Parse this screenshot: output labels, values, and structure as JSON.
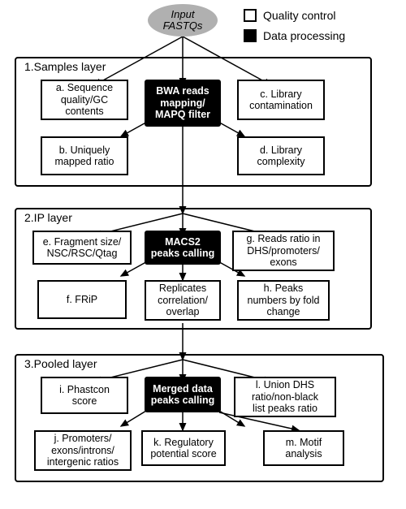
{
  "legend": {
    "qc": "Quality control",
    "dp": "Data processing"
  },
  "input": "Input\nFASTQs",
  "layers": {
    "l1": "1.Samples layer",
    "l2": "2.IP layer",
    "l3": "3.Pooled layer"
  },
  "blocks": {
    "bwa": "BWA reads\nmapping/\nMAPQ filter",
    "macs2": "MACS2\npeaks calling",
    "merged": "Merged data\npeaks calling"
  },
  "nodes": {
    "a": "a. Sequence\nquality/GC\ncontents",
    "b": "b. Uniquely\nmapped ratio",
    "c": "c. Library\ncontamination",
    "d": "d. Library\ncomplexity",
    "e": "e. Fragment size/\nNSC/RSC/Qtag",
    "f": "f. FRiP",
    "g": "g. Reads ratio in\nDHS/promoters/\nexons",
    "h": "h. Peaks\nnumbers by fold\nchange",
    "rep": "Replicates\ncorrelation/\noverlap",
    "i": "i. Phastcon\nscore",
    "j": "j. Promoters/\nexons/introns/\nintergenic ratios",
    "k": "k. Regulatory\npotential score",
    "l": "l. Union DHS\nratio/non-black\nlist peaks ratio",
    "m": "m. Motif\nanalysis"
  },
  "style": {
    "bg": "#ffffff",
    "stroke": "#000000",
    "oval_fill": "#b0b0b0",
    "font_small": 12.5,
    "font_label": 14
  },
  "edges": [
    {
      "from": [
        225,
        45
      ],
      "to": [
        116,
        105
      ]
    },
    {
      "from": [
        225,
        45
      ],
      "to": [
        225,
        105
      ]
    },
    {
      "from": [
        225,
        45
      ],
      "to": [
        334,
        105
      ]
    },
    {
      "from": [
        185,
        148
      ],
      "to": [
        149,
        168
      ]
    },
    {
      "from": [
        265,
        148
      ],
      "to": [
        301,
        168
      ]
    },
    {
      "from": [
        225,
        148
      ],
      "to": [
        225,
        263
      ]
    },
    {
      "from": [
        225,
        263
      ],
      "to": [
        116,
        290
      ]
    },
    {
      "from": [
        225,
        263
      ],
      "to": [
        225,
        290
      ]
    },
    {
      "from": [
        225,
        263
      ],
      "to": [
        334,
        290
      ]
    },
    {
      "from": [
        185,
        320
      ],
      "to": [
        149,
        340
      ]
    },
    {
      "from": [
        265,
        320
      ],
      "to": [
        301,
        340
      ]
    },
    {
      "from": [
        225,
        323
      ],
      "to": [
        225,
        345
      ]
    },
    {
      "from": [
        225,
        398
      ],
      "to": [
        225,
        443
      ]
    },
    {
      "from": [
        225,
        443
      ],
      "to": [
        116,
        470
      ]
    },
    {
      "from": [
        225,
        443
      ],
      "to": [
        225,
        470
      ]
    },
    {
      "from": [
        225,
        443
      ],
      "to": [
        334,
        470
      ]
    },
    {
      "from": [
        185,
        503
      ],
      "to": [
        149,
        525
      ]
    },
    {
      "from": [
        265,
        503
      ],
      "to": [
        301,
        525
      ]
    },
    {
      "from": [
        225,
        508
      ],
      "to": [
        225,
        530
      ]
    },
    {
      "from": [
        270,
        508
      ],
      "to": [
        368,
        530
      ]
    }
  ]
}
